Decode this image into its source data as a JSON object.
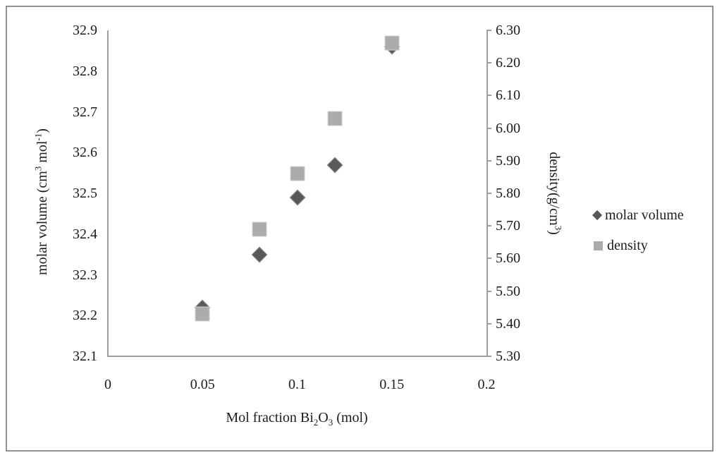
{
  "chart_data": {
    "type": "scatter",
    "title": "",
    "grid": false,
    "legend_position": "right",
    "x": [
      0.05,
      0.08,
      0.1,
      0.12,
      0.15
    ],
    "series": [
      {
        "name": "molar volume",
        "axis": "left",
        "marker": "diamond",
        "color": "#595959",
        "values": [
          32.22,
          32.35,
          32.49,
          32.57,
          32.86
        ]
      },
      {
        "name": "density",
        "axis": "right",
        "marker": "square",
        "color": "#ababab",
        "values": [
          5.43,
          5.69,
          5.86,
          6.03,
          6.26
        ]
      }
    ],
    "x_axis": {
      "min": 0,
      "max": 0.2,
      "title_parts": [
        {
          "t": "Mol fraction Bi"
        },
        {
          "t": "2",
          "s": "sub"
        },
        {
          "t": "O"
        },
        {
          "t": "3",
          "s": "sub"
        },
        {
          "t": " (mol)"
        }
      ],
      "ticks": [
        {
          "v": 0,
          "label": "0"
        },
        {
          "v": 0.05,
          "label": "0.05"
        },
        {
          "v": 0.1,
          "label": "0.1"
        },
        {
          "v": 0.15,
          "label": "0.15"
        },
        {
          "v": 0.2,
          "label": "0.2"
        }
      ]
    },
    "y_left": {
      "min": 32.1,
      "max": 32.9,
      "title_parts": [
        {
          "t": "molar volume (cm"
        },
        {
          "t": "3",
          "s": "sup"
        },
        {
          "t": " mol"
        },
        {
          "t": "-1",
          "s": "sup"
        },
        {
          "t": ")"
        }
      ],
      "ticks": [
        {
          "v": 32.9,
          "label": "32.9"
        },
        {
          "v": 32.8,
          "label": "32.8"
        },
        {
          "v": 32.7,
          "label": "32.7"
        },
        {
          "v": 32.6,
          "label": "32.6"
        },
        {
          "v": 32.5,
          "label": "32.5"
        },
        {
          "v": 32.4,
          "label": "32.4"
        },
        {
          "v": 32.3,
          "label": "32.3"
        },
        {
          "v": 32.2,
          "label": "32.2"
        },
        {
          "v": 32.1,
          "label": "32.1"
        }
      ]
    },
    "y_right": {
      "min": 5.3,
      "max": 6.3,
      "title_parts": [
        {
          "t": "density(g/cm"
        },
        {
          "t": "3",
          "s": "sup"
        },
        {
          "t": ")"
        }
      ],
      "ticks": [
        {
          "v": 6.3,
          "label": "6.30"
        },
        {
          "v": 6.2,
          "label": "6.20"
        },
        {
          "v": 6.1,
          "label": "6.10"
        },
        {
          "v": 6.0,
          "label": "6.00"
        },
        {
          "v": 5.9,
          "label": "5.90"
        },
        {
          "v": 5.8,
          "label": "5.80"
        },
        {
          "v": 5.7,
          "label": "5.70"
        },
        {
          "v": 5.6,
          "label": "5.60"
        },
        {
          "v": 5.5,
          "label": "5.50"
        },
        {
          "v": 5.4,
          "label": "5.40"
        },
        {
          "v": 5.3,
          "label": "5.30"
        }
      ]
    },
    "legend": {
      "items": [
        {
          "label": "molar volume",
          "marker": "diamond"
        },
        {
          "label": "density",
          "marker": "square"
        }
      ]
    }
  },
  "colors": {
    "text": "#1c1c1c",
    "axis_line": "#9e9e9e",
    "frame_border": "#8f9092",
    "molar_volume_marker": "#595959",
    "density_marker": "#ababab"
  }
}
